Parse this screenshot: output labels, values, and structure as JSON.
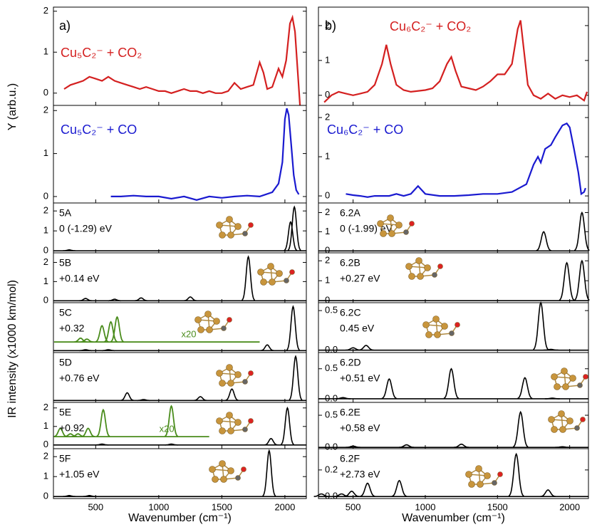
{
  "y_titles": [
    "Y (arb.u.)",
    "IR intensity (x1000 km/mol)"
  ],
  "chart_data": [
    {
      "type": "stacked-panels",
      "xlabel": "Wavenumber (cm⁻¹)",
      "xlim": [
        165,
        2170
      ],
      "xticks": [
        500,
        1000,
        1500,
        2000
      ],
      "panels": [
        {
          "type": "line",
          "letter": "a)",
          "label": "Cu₅C₂⁻ + CO₂",
          "color": "#d42020",
          "ylim": [
            -0.3,
            2.1
          ],
          "yticks": [
            0,
            1,
            2
          ],
          "x": [
            250,
            300,
            350,
            400,
            450,
            500,
            550,
            600,
            650,
            700,
            750,
            800,
            850,
            900,
            950,
            1000,
            1050,
            1100,
            1150,
            1200,
            1250,
            1300,
            1350,
            1400,
            1450,
            1500,
            1550,
            1600,
            1650,
            1700,
            1750,
            1800,
            1830,
            1860,
            1900,
            1950,
            1980,
            2010,
            2040,
            2060,
            2080,
            2100,
            2120
          ],
          "values": [
            0.1,
            0.2,
            0.25,
            0.3,
            0.4,
            0.35,
            0.3,
            0.4,
            0.3,
            0.25,
            0.2,
            0.15,
            0.1,
            0.15,
            0.1,
            0.05,
            0.05,
            0.0,
            0.05,
            0.1,
            0.05,
            0.05,
            0.0,
            0.05,
            0.0,
            0.0,
            0.05,
            0.25,
            0.1,
            0.15,
            0.2,
            0.75,
            0.5,
            0.1,
            0.15,
            0.6,
            0.4,
            0.8,
            1.7,
            1.85,
            1.5,
            0.6,
            -0.3
          ]
        },
        {
          "type": "line",
          "label": "Cu₅C₂⁻ + CO",
          "color": "#1a1ad0",
          "ylim": [
            -0.15,
            2.12
          ],
          "yticks": [
            0,
            1,
            2
          ],
          "x": [
            620,
            700,
            800,
            900,
            1000,
            1100,
            1200,
            1300,
            1400,
            1500,
            1600,
            1700,
            1800,
            1850,
            1900,
            1950,
            1980,
            2000,
            2015,
            2030,
            2050,
            2070,
            2090,
            2110
          ],
          "values": [
            0.0,
            0.0,
            0.02,
            0.0,
            0.0,
            -0.05,
            0.0,
            -0.08,
            0.0,
            -0.03,
            0.0,
            0.02,
            0.0,
            0.05,
            0.1,
            0.3,
            0.8,
            1.8,
            2.05,
            1.9,
            1.2,
            0.5,
            0.15,
            0.05
          ]
        },
        {
          "type": "stick",
          "name": "5A",
          "energy": "0 (-1.29) eV",
          "color": "#000000",
          "ylim": [
            -0.1,
            2.4
          ],
          "yticks": [
            0,
            1,
            2
          ],
          "x": [
            290,
            2045,
            2075
          ],
          "values": [
            0.05,
            1.45,
            2.2
          ]
        },
        {
          "type": "stick",
          "name": "5B",
          "energy": "+0.14 eV",
          "color": "#000000",
          "ylim": [
            -0.1,
            2.5
          ],
          "yticks": [
            0,
            1,
            2
          ],
          "x": [
            420,
            650,
            860,
            1250,
            1710
          ],
          "values": [
            0.12,
            0.08,
            0.15,
            0.2,
            2.3
          ]
        },
        {
          "type": "stick",
          "name": "5C",
          "energy": "+0.32",
          "color": "#000000",
          "ylim": [
            -0.1,
            2.5
          ],
          "x": [
            420,
            600,
            1860,
            2065
          ],
          "values": [
            0.05,
            0.05,
            0.3,
            2.3
          ],
          "inset": {
            "color": "#4a8c1c",
            "note": "x20",
            "baseline": 0.45,
            "xlim": [
              170,
              1800
            ],
            "x": [
              380,
              430,
              550,
              620,
              670
            ],
            "values": [
              0.65,
              0.6,
              1.3,
              1.5,
              1.75
            ]
          }
        },
        {
          "type": "stick",
          "name": "5D",
          "energy": "+0.76 eV",
          "color": "#000000",
          "ylim": [
            -0.1,
            2.5
          ],
          "x": [
            750,
            880,
            1330,
            1580,
            2085
          ],
          "values": [
            0.4,
            0.05,
            0.2,
            0.6,
            2.3
          ]
        },
        {
          "type": "stick",
          "name": "5E",
          "energy": "+0.92",
          "color": "#000000",
          "ylim": [
            -0.2,
            2.3
          ],
          "yticks": [
            0,
            1,
            2
          ],
          "x": [
            550,
            1100,
            1890,
            2020
          ],
          "values": [
            0.05,
            0.05,
            0.35,
            2.0
          ],
          "inset": {
            "color": "#4a8c1c",
            "note": "x20",
            "baseline": 0.45,
            "xlim": [
              170,
              1400
            ],
            "x": [
              220,
              300,
              360,
              440,
              560,
              1100
            ],
            "values": [
              0.9,
              0.6,
              0.6,
              0.9,
              1.9,
              2.1
            ]
          }
        },
        {
          "type": "stick",
          "name": "5F",
          "energy": "+1.05 eV",
          "color": "#000000",
          "ylim": [
            -0.1,
            2.4
          ],
          "yticks": [
            0,
            1,
            2
          ],
          "x": [
            290,
            450,
            1875
          ],
          "values": [
            0.05,
            0.05,
            2.3
          ]
        }
      ]
    },
    {
      "type": "stacked-panels",
      "xlabel": "Wavenumber (cm⁻¹)",
      "xlim": [
        260,
        2130
      ],
      "xticks": [
        500,
        1000,
        1500,
        2000
      ],
      "panels": [
        {
          "type": "line",
          "letter": "b)",
          "label": "Cu₆C₂⁻ + CO₂",
          "color": "#d42020",
          "ylim": [
            -0.29,
            2.53
          ],
          "yticks": [
            0,
            1,
            2
          ],
          "x": [
            300,
            350,
            400,
            450,
            500,
            550,
            600,
            650,
            700,
            730,
            760,
            800,
            850,
            900,
            1000,
            1050,
            1100,
            1150,
            1180,
            1210,
            1250,
            1300,
            1350,
            1400,
            1450,
            1500,
            1550,
            1600,
            1640,
            1660,
            1680,
            1710,
            1750,
            1800,
            1850,
            1900,
            1950,
            2000,
            2050,
            2100,
            2120
          ],
          "values": [
            -0.2,
            0.0,
            0.1,
            0.05,
            0.0,
            0.05,
            0.1,
            0.3,
            0.9,
            1.45,
            0.9,
            0.3,
            0.15,
            0.1,
            0.15,
            0.2,
            0.4,
            0.9,
            1.1,
            0.7,
            0.25,
            0.2,
            0.15,
            0.25,
            0.4,
            0.6,
            0.6,
            0.9,
            1.9,
            2.15,
            1.4,
            0.3,
            0.0,
            -0.1,
            0.05,
            -0.1,
            0.0,
            -0.05,
            0.0,
            -0.15,
            0.1
          ]
        },
        {
          "type": "line",
          "label": "Cu₆C₂⁻ + CO",
          "color": "#1a1ad0",
          "ylim": [
            -0.18,
            2.31
          ],
          "yticks": [
            0,
            1,
            2
          ],
          "x": [
            450,
            500,
            550,
            600,
            650,
            700,
            750,
            800,
            850,
            900,
            950,
            1000,
            1100,
            1200,
            1300,
            1400,
            1500,
            1600,
            1700,
            1750,
            1780,
            1800,
            1830,
            1870,
            1900,
            1950,
            1980,
            2000,
            2030,
            2060,
            2080,
            2100,
            2110
          ],
          "values": [
            0.05,
            0.02,
            0.0,
            -0.03,
            0.0,
            0.0,
            0.0,
            0.05,
            0.0,
            0.05,
            0.25,
            0.05,
            0.0,
            0.0,
            0.02,
            0.05,
            0.05,
            0.1,
            0.3,
            0.8,
            1.0,
            0.85,
            1.2,
            1.3,
            1.5,
            1.8,
            1.85,
            1.75,
            1.2,
            0.6,
            0.05,
            0.1,
            0.2
          ]
        },
        {
          "type": "stick",
          "name": "6.2A",
          "energy": "0 (-1.99) eV",
          "color": "#000000",
          "ylim": [
            -0.1,
            2.5
          ],
          "yticks": [
            0,
            1,
            2
          ],
          "x": [
            1820,
            2085
          ],
          "values": [
            1.0,
            2.0
          ]
        },
        {
          "type": "stick",
          "name": "6.2B",
          "energy": "+0.27 eV",
          "color": "#000000",
          "ylim": [
            -0.1,
            2.4
          ],
          "yticks": [
            0,
            1,
            2
          ],
          "x": [
            1980,
            2085
          ],
          "values": [
            1.9,
            2.0
          ]
        },
        {
          "type": "stick",
          "name": "6.2C",
          "energy": "0.45 eV",
          "color": "#000000",
          "ylim": [
            -0.03,
            0.6
          ],
          "yticks": [
            {
              "value": 0,
              "label": "0.0"
            },
            0.5
          ],
          "x": [
            500,
            590,
            1800,
            1870
          ],
          "values": [
            0.03,
            0.06,
            0.6,
            0.01
          ]
        },
        {
          "type": "stick",
          "name": "6.2D",
          "energy": "+0.51 eV",
          "color": "#000000",
          "ylim": [
            -0.06,
            0.77
          ],
          "yticks": [
            {
              "value": 0,
              "label": "0.0"
            },
            0.5
          ],
          "x": [
            430,
            750,
            1180,
            1690,
            1880
          ],
          "values": [
            0.02,
            0.33,
            0.5,
            0.35,
            0.01
          ]
        },
        {
          "type": "stick",
          "name": "6.2E",
          "energy": "+0.58 eV",
          "color": "#000000",
          "ylim": [
            -0.02,
            0.7
          ],
          "yticks": [
            {
              "value": 0,
              "label": "0.0"
            },
            0.5
          ],
          "x": [
            500,
            870,
            1250,
            1660,
            1950
          ],
          "values": [
            0.02,
            0.04,
            0.05,
            0.55,
            0.01
          ]
        },
        {
          "type": "stick",
          "name": "6.2F",
          "energy": "+2.73 eV",
          "color": "#000000",
          "ylim": [
            -0.015,
            0.36
          ],
          "yticks": [
            {
              "value": 0,
              "label": "0.0"
            },
            0.2
          ],
          "x": [
            280,
            420,
            490,
            600,
            820,
            1630,
            1850
          ],
          "values": [
            0.02,
            0.02,
            0.04,
            0.1,
            0.12,
            0.32,
            0.05
          ]
        }
      ]
    }
  ]
}
